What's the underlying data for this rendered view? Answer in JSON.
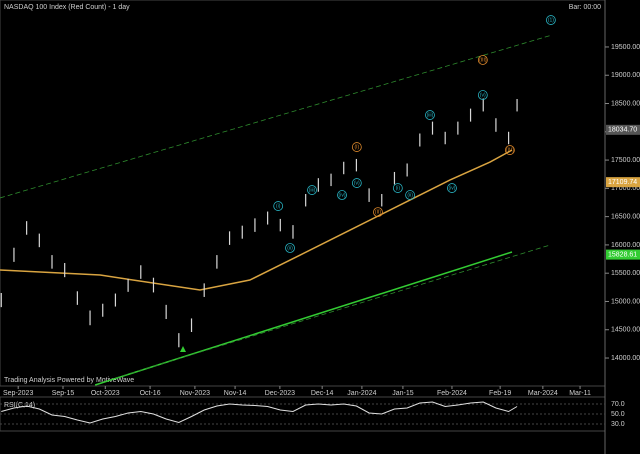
{
  "chart_data": [
    {
      "type": "ohlc",
      "title": "NASDAQ 100 Index (Red Count) - 1 day",
      "subtitle": "Bar: 00:00",
      "footer": "Trading Analysis Powered by MotiveWave",
      "color": "#d8d8d8",
      "x": [
        -4,
        -1,
        2,
        5,
        8,
        11,
        14,
        17,
        20,
        23,
        26,
        29,
        32,
        35,
        38,
        41,
        44,
        47,
        50,
        53,
        56,
        59,
        62,
        65,
        68,
        71,
        74,
        77,
        80,
        83,
        86,
        89,
        92,
        95,
        98,
        101,
        104,
        107,
        110,
        113,
        116,
        118
      ],
      "high": [
        15150,
        15950,
        16420,
        16200,
        15820,
        15680,
        15180,
        14840,
        14960,
        15140,
        15400,
        15640,
        15420,
        14940,
        14440,
        14700,
        15320,
        15820,
        16240,
        16340,
        16470,
        16590,
        16460,
        16350,
        16900,
        17180,
        17260,
        17470,
        17520,
        17000,
        16900,
        17290,
        17440,
        17970,
        18180,
        18000,
        18180,
        18410,
        18590,
        18240,
        18000,
        18580
      ],
      "low": [
        14900,
        15700,
        16180,
        15960,
        15580,
        15430,
        14940,
        14580,
        14730,
        14910,
        15170,
        15400,
        15160,
        14690,
        14190,
        14460,
        15080,
        15580,
        16000,
        16110,
        16230,
        16360,
        16240,
        16110,
        16680,
        16940,
        17040,
        17250,
        17300,
        16760,
        16680,
        17070,
        17210,
        17740,
        17950,
        17780,
        17950,
        18180,
        18360,
        18000,
        17780,
        18360
      ],
      "xlim": [
        -4.3,
        138.8
      ],
      "ylim": [
        13523,
        20242
      ],
      "xticks": [
        {
          "value": 0,
          "label": "Sep-2023"
        },
        {
          "value": 10.6,
          "label": "Sep-15"
        },
        {
          "value": 20.6,
          "label": "Oct-2023"
        },
        {
          "value": 31.2,
          "label": "Oct-16"
        },
        {
          "value": 41.8,
          "label": "Nov-2023"
        },
        {
          "value": 51.3,
          "label": "Nov-14"
        },
        {
          "value": 61.9,
          "label": "Dec-2023"
        },
        {
          "value": 71.9,
          "label": "Dec-14"
        },
        {
          "value": 81.3,
          "label": "Jan-2024"
        },
        {
          "value": 91,
          "label": "Jan-15"
        },
        {
          "value": 102.6,
          "label": "Feb-2024"
        },
        {
          "value": 114,
          "label": "Feb-19"
        },
        {
          "value": 124.1,
          "label": "Mar-2024"
        },
        {
          "value": 132.9,
          "label": "Mar-11"
        }
      ],
      "yticks": [
        {
          "value": 14000,
          "label": "14000.00"
        },
        {
          "value": 14500,
          "label": "14500.00"
        },
        {
          "value": 15000,
          "label": "15000.00"
        },
        {
          "value": 15500,
          "label": "15500.00"
        },
        {
          "value": 16000,
          "label": "16000.00"
        },
        {
          "value": 16500,
          "label": "16500.00"
        },
        {
          "value": 17000,
          "label": "17000.00"
        },
        {
          "value": 17500,
          "label": "17500.00"
        },
        {
          "value": 18000,
          "label": "18000.00"
        },
        {
          "value": 18500,
          "label": "18500.00"
        },
        {
          "value": 19000,
          "label": "19000.00"
        },
        {
          "value": 19500,
          "label": "19500.00"
        }
      ],
      "lines": [
        {
          "color": "#d9a441",
          "dash": false,
          "x": [
            -4.3,
            19.4,
            43,
            54.8,
            66.7,
            78.5,
            90.3,
            102.1,
            111.6,
            116.8
          ],
          "values": [
            15556,
            15467,
            15202,
            15379,
            15821,
            16263,
            16705,
            17147,
            17465,
            17677
          ]
        },
        {
          "color": "#33cc33",
          "dash": false,
          "x": [
            18.2,
            116.8
          ],
          "values": [
            13523,
            15875
          ]
        },
        {
          "color": "#2e8b2e",
          "dash": true,
          "x": [
            -4.3,
            126.2
          ],
          "values": [
            16830,
            19710
          ]
        },
        {
          "color": "#2e8b2e",
          "dash": true,
          "x": [
            22.9,
            125.8
          ],
          "values": [
            13645,
            15998
          ]
        }
      ],
      "annotations": [
        {
          "text": "(1)",
          "x": 126,
          "y": 19976,
          "color": "#29b6c6"
        },
        {
          "text": "(i)",
          "x": 61.5,
          "y": 16687,
          "color": "#29b6c6"
        },
        {
          "text": "(ii)",
          "x": 64.3,
          "y": 15945,
          "color": "#29b6c6"
        },
        {
          "text": "(iii)",
          "x": 69.5,
          "y": 16970,
          "color": "#29b6c6"
        },
        {
          "text": "(iv)",
          "x": 76.6,
          "y": 16882,
          "color": "#29b6c6"
        },
        {
          "text": "(v)",
          "x": 80.1,
          "y": 17094,
          "color": "#29b6c6"
        },
        {
          "text": "(I)",
          "x": 80.1,
          "y": 17730,
          "color": "#e08a2c"
        },
        {
          "text": "(II)",
          "x": 85.1,
          "y": 16580,
          "color": "#e08a2c"
        },
        {
          "text": "(i)",
          "x": 89.8,
          "y": 17005,
          "color": "#29b6c6"
        },
        {
          "text": "(ii)",
          "x": 92.7,
          "y": 16882,
          "color": "#29b6c6"
        },
        {
          "text": "(iii)",
          "x": 97.4,
          "y": 18296,
          "color": "#29b6c6"
        },
        {
          "text": "(iv)",
          "x": 102.6,
          "y": 17005,
          "color": "#29b6c6"
        },
        {
          "text": "(v)",
          "x": 109.9,
          "y": 18650,
          "color": "#29b6c6"
        },
        {
          "text": "(III)",
          "x": 109.9,
          "y": 19270,
          "color": "#e08a2c"
        },
        {
          "text": "(IV)",
          "x": 116.3,
          "y": 17677,
          "color": "#e08a2c"
        }
      ],
      "price_labels": [
        {
          "value": 18034.7,
          "label": "18034.70",
          "color": "#555555"
        },
        {
          "value": 17109.74,
          "label": "17109.74",
          "color": "#d9a441"
        },
        {
          "value": 15828.61,
          "label": "15828.61",
          "color": "#33cc33"
        }
      ]
    },
    {
      "type": "line",
      "title": "RSI(C,14)",
      "color": "#e0e0e0",
      "x": [
        -4,
        -1,
        2,
        5,
        8,
        11,
        14,
        17,
        20,
        23,
        26,
        29,
        32,
        35,
        38,
        41,
        44,
        47,
        50,
        53,
        56,
        59,
        62,
        65,
        68,
        71,
        74,
        77,
        80,
        83,
        86,
        89,
        92,
        95,
        98,
        101,
        104,
        107,
        110,
        113,
        116,
        118
      ],
      "values": [
        55,
        62,
        66,
        60,
        48,
        45,
        38,
        32,
        40,
        45,
        52,
        55,
        50,
        40,
        33,
        45,
        58,
        66,
        70,
        68,
        67,
        65,
        58,
        55,
        68,
        70,
        68,
        70,
        66,
        52,
        50,
        60,
        62,
        72,
        74,
        65,
        68,
        72,
        74,
        62,
        55,
        65
      ],
      "xlim": [
        -4.3,
        138.8
      ],
      "ylim": [
        20,
        80
      ],
      "yticks": [
        {
          "value": 70,
          "label": "70.0"
        },
        {
          "value": 50,
          "label": "50.0"
        },
        {
          "value": 30,
          "label": "30.0"
        }
      ]
    }
  ]
}
